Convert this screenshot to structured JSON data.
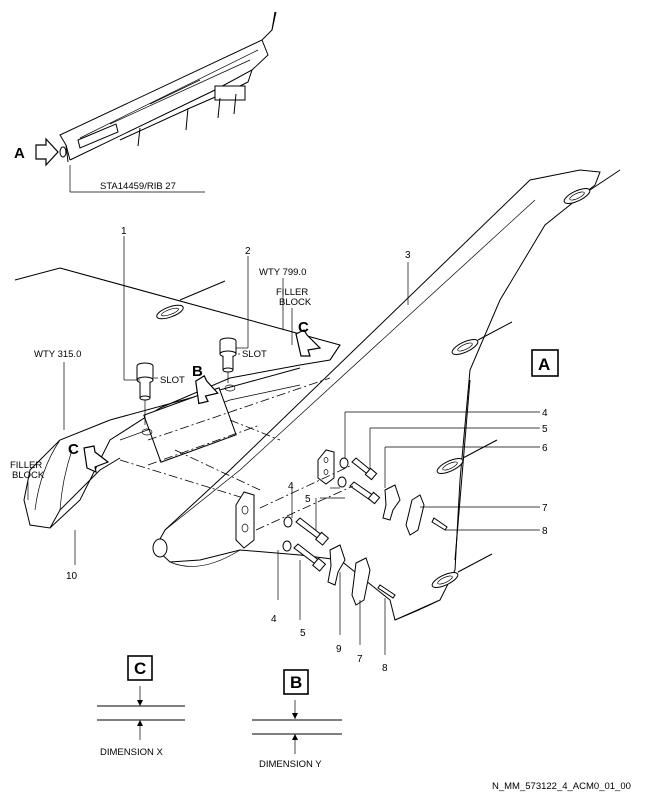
{
  "callouts": {
    "view_a": "A",
    "view_b": "B",
    "view_c": "C",
    "view_c_2": "C",
    "box_a": "A",
    "box_b": "B",
    "box_c": "C"
  },
  "labels": {
    "station": "STA14459/RIB 27",
    "wty_799": "WTY 799.0",
    "wty_315": "WTY 315.0",
    "filler_block_1": "FILLER",
    "filler_block_1b": "BLOCK",
    "filler_block_2": "FILLER",
    "filler_block_2b": "BLOCK",
    "slot_1": "SLOT",
    "slot_2": "SLOT",
    "dimension_x": "DIMENSION X",
    "dimension_y": "DIMENSION Y",
    "drawing_ref": "N_MM_573122_4_ACM0_01_00"
  },
  "item_numbers": {
    "n1": "1",
    "n2": "2",
    "n3": "3",
    "n4a": "4",
    "n5a": "5",
    "n6": "6",
    "n7a": "7",
    "n8a": "8",
    "n4b": "4",
    "n5b": "5",
    "n4c": "4",
    "n5c": "5",
    "n9": "9",
    "n7b": "7",
    "n8b": "8",
    "n10": "10"
  }
}
